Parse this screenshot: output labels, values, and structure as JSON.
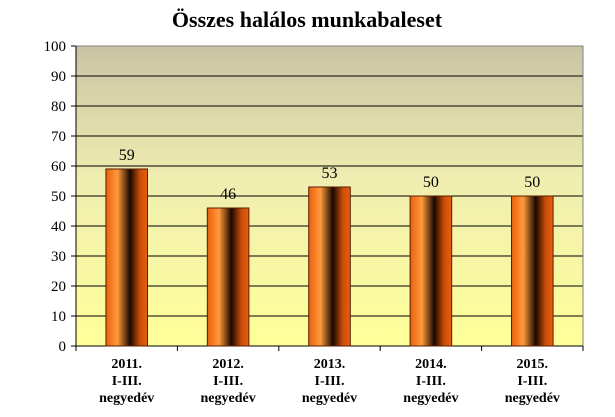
{
  "chart_data": {
    "type": "bar",
    "title": "Összes halálos munkabaleset",
    "categories": [
      [
        "2011.",
        "I-III.",
        "negyedév"
      ],
      [
        "2012.",
        "I-III.",
        "negyedév"
      ],
      [
        "2013.",
        "I-III.",
        "negyedév"
      ],
      [
        "2014.",
        "I-III.",
        "negyedév"
      ],
      [
        "2015.",
        "I-III.",
        "negyedév"
      ]
    ],
    "values": [
      59,
      46,
      53,
      50,
      50
    ],
    "ylim": [
      0,
      100
    ],
    "yticks": [
      "0",
      "10",
      "20",
      "30",
      "40",
      "50",
      "60",
      "70",
      "80",
      "90",
      "100"
    ],
    "grid": true,
    "legend": "none",
    "colors": {
      "bar_dark": "#1a0800",
      "bar_mid": "#e8600f",
      "bar_light": "#ff9a3c",
      "bar_edge": "#5a1e00",
      "plot_bg_top": "#c9c3a4",
      "plot_bg_bottom": "#ffff99",
      "grid": "#000000"
    }
  }
}
